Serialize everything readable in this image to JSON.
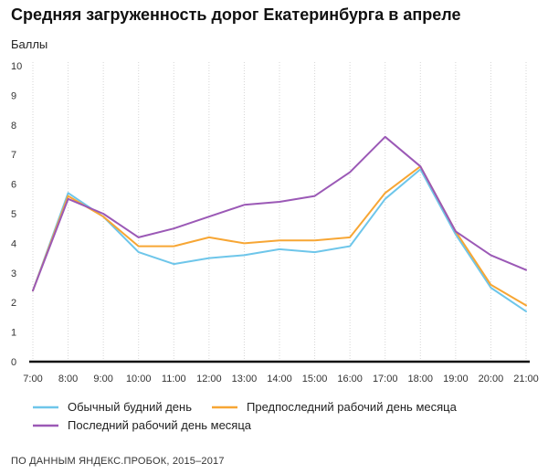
{
  "title": "Средняя загруженность дорог Екатеринбурга в апреле",
  "source": "ПО ДАННЫМ ЯНДЕКС.ПРОБОК, 2015–2017",
  "chart_data": {
    "type": "line",
    "title": "Средняя загруженность дорог Екатеринбурга в апреле",
    "ylabel": "Баллы",
    "xlabel": "",
    "ylim": [
      0,
      10
    ],
    "yticks": [
      "0",
      "1",
      "2",
      "3",
      "4",
      "5",
      "6",
      "7",
      "8",
      "9",
      "10"
    ],
    "categories": [
      "7:00",
      "8:00",
      "9:00",
      "10:00",
      "11:00",
      "12:00",
      "13:00",
      "14:00",
      "15:00",
      "16:00",
      "17:00",
      "18:00",
      "19:00",
      "20:00",
      "21:00"
    ],
    "grid": "vertical",
    "legend_position": "bottom",
    "series": [
      {
        "name": "Обычный будний день",
        "color": "#6ec6ea",
        "values": [
          2.4,
          5.7,
          4.9,
          3.7,
          3.3,
          3.5,
          3.6,
          3.8,
          3.7,
          3.9,
          5.5,
          6.5,
          4.3,
          2.5,
          1.7
        ]
      },
      {
        "name": "Предпоследний рабочий день месяца",
        "color": "#f7a634",
        "values": [
          2.4,
          5.6,
          4.9,
          3.9,
          3.9,
          4.2,
          4.0,
          4.1,
          4.1,
          4.2,
          5.7,
          6.6,
          4.4,
          2.6,
          1.9
        ]
      },
      {
        "name": "Последний рабочий день месяца",
        "color": "#9b59b6",
        "values": [
          2.4,
          5.5,
          5.0,
          4.2,
          4.5,
          4.9,
          5.3,
          5.4,
          5.6,
          6.4,
          7.6,
          6.6,
          4.4,
          3.6,
          3.1
        ]
      }
    ]
  }
}
